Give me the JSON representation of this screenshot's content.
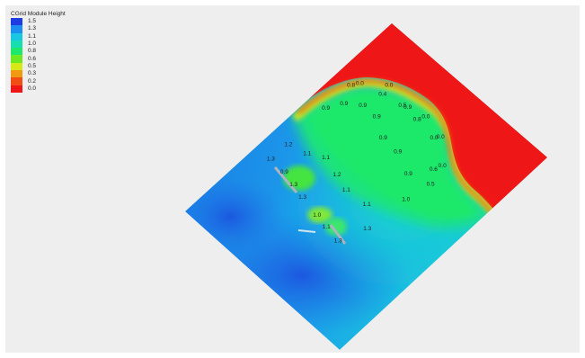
{
  "legend": {
    "title": "CGrid Module Height",
    "entries": [
      {
        "label": "1.5",
        "color": "#1d3de3"
      },
      {
        "label": "1.3",
        "color": "#1c8ef0"
      },
      {
        "label": "1.1",
        "color": "#19c7e2"
      },
      {
        "label": "1.0",
        "color": "#17ddb0"
      },
      {
        "label": "0.8",
        "color": "#1ee86c"
      },
      {
        "label": "0.6",
        "color": "#6fe824"
      },
      {
        "label": "0.5",
        "color": "#d6e81a"
      },
      {
        "label": "0.3",
        "color": "#f09a14"
      },
      {
        "label": "0.2",
        "color": "#f04e14"
      },
      {
        "label": "0.0",
        "color": "#ee1616"
      }
    ]
  },
  "contour_labels": [
    {
      "text": "0.8",
      "fx": 0.6,
      "fy": 0.238
    },
    {
      "text": "0.0",
      "fx": 0.615,
      "fy": 0.232
    },
    {
      "text": "0.0",
      "fx": 0.665,
      "fy": 0.237
    },
    {
      "text": "0.4",
      "fx": 0.654,
      "fy": 0.262
    },
    {
      "text": "0.9",
      "fx": 0.557,
      "fy": 0.302
    },
    {
      "text": "0.9",
      "fx": 0.588,
      "fy": 0.289
    },
    {
      "text": "0.9",
      "fx": 0.62,
      "fy": 0.294
    },
    {
      "text": "0.9",
      "fx": 0.644,
      "fy": 0.325
    },
    {
      "text": "0.5",
      "fx": 0.688,
      "fy": 0.294
    },
    {
      "text": "0.9",
      "fx": 0.697,
      "fy": 0.299
    },
    {
      "text": "0.8",
      "fx": 0.713,
      "fy": 0.333
    },
    {
      "text": "0.0",
      "fx": 0.728,
      "fy": 0.325
    },
    {
      "text": "0.9",
      "fx": 0.655,
      "fy": 0.385
    },
    {
      "text": "0.0",
      "fx": 0.742,
      "fy": 0.384
    },
    {
      "text": "0.0",
      "fx": 0.753,
      "fy": 0.382
    },
    {
      "text": "0.9",
      "fx": 0.68,
      "fy": 0.423
    },
    {
      "text": "0.9",
      "fx": 0.698,
      "fy": 0.485
    },
    {
      "text": "0.6",
      "fx": 0.741,
      "fy": 0.472
    },
    {
      "text": "0.0",
      "fx": 0.756,
      "fy": 0.462
    },
    {
      "text": "0.5",
      "fx": 0.736,
      "fy": 0.514
    },
    {
      "text": "1.0",
      "fx": 0.694,
      "fy": 0.557
    },
    {
      "text": "1.2",
      "fx": 0.493,
      "fy": 0.403
    },
    {
      "text": "1.1",
      "fx": 0.525,
      "fy": 0.428
    },
    {
      "text": "1.1",
      "fx": 0.557,
      "fy": 0.44
    },
    {
      "text": "1.3",
      "fx": 0.463,
      "fy": 0.443
    },
    {
      "text": "0.9",
      "fx": 0.486,
      "fy": 0.48
    },
    {
      "text": "1.2",
      "fx": 0.576,
      "fy": 0.487
    },
    {
      "text": "1.3",
      "fx": 0.502,
      "fy": 0.515
    },
    {
      "text": "1.1",
      "fx": 0.592,
      "fy": 0.53
    },
    {
      "text": "1.3",
      "fx": 0.517,
      "fy": 0.55
    },
    {
      "text": "1.1",
      "fx": 0.627,
      "fy": 0.57
    },
    {
      "text": "1.0",
      "fx": 0.542,
      "fy": 0.6
    },
    {
      "text": "1.1",
      "fx": 0.558,
      "fy": 0.633
    },
    {
      "text": "1.3",
      "fx": 0.628,
      "fy": 0.638
    },
    {
      "text": "1.3",
      "fx": 0.578,
      "fy": 0.672
    }
  ]
}
